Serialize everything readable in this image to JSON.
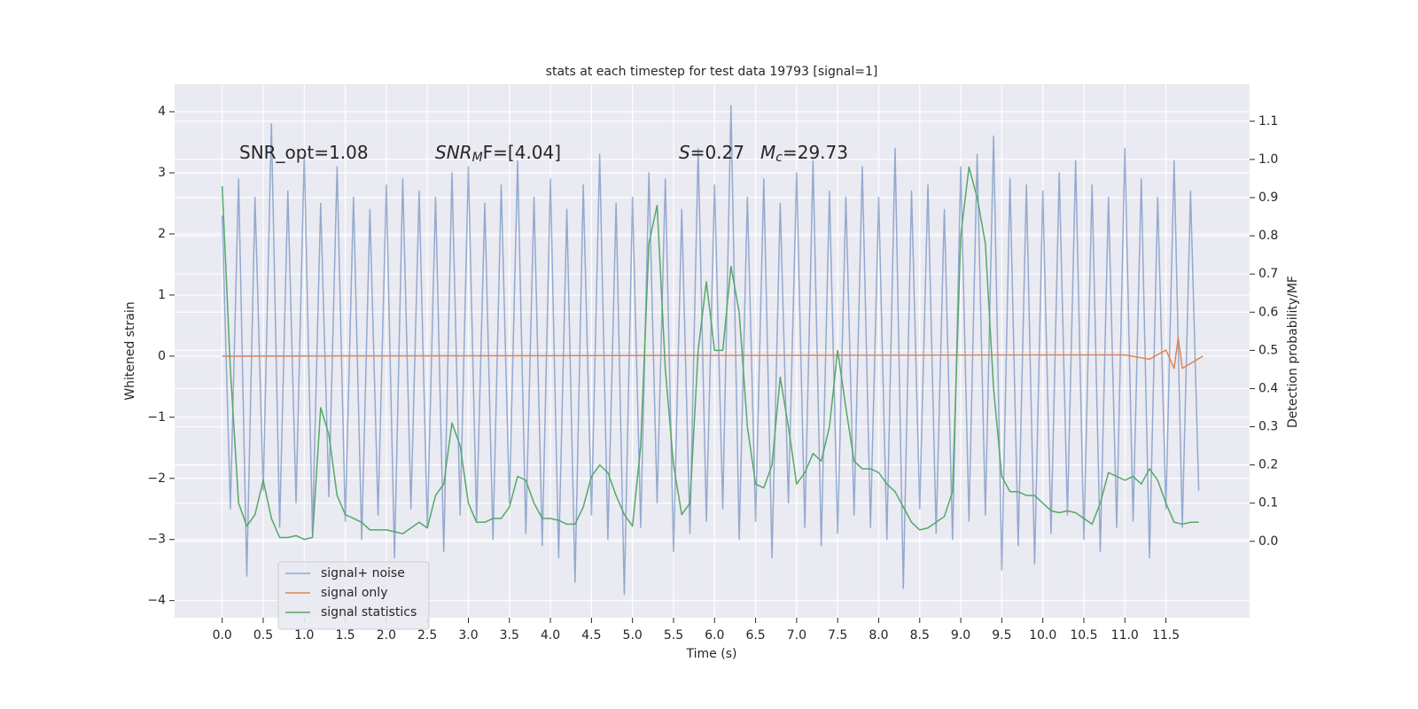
{
  "chart_data": {
    "type": "line",
    "title": "stats at each timestep for test data 19793 [signal=1]",
    "xlabel": "Time (s)",
    "ylabel": "Whitened strain",
    "y2label": "Detection probability/MF",
    "xlim": [
      -0.58,
      12.52
    ],
    "ylim": [
      -4.28,
      4.45
    ],
    "y2lim": [
      -0.2,
      1.197
    ],
    "xticks": [
      {
        "value": 0,
        "label": "0.0"
      },
      0.5,
      {
        "value": 1,
        "label": "1.0"
      },
      1.5,
      {
        "value": 2,
        "label": "2.0"
      },
      2.5,
      {
        "value": 3,
        "label": "3.0"
      },
      3.5,
      {
        "value": 4,
        "label": "4.0"
      },
      4.5,
      {
        "value": 5,
        "label": "5.0"
      },
      5.5,
      {
        "value": 6,
        "label": "6.0"
      },
      6.5,
      {
        "value": 7,
        "label": "7.0"
      },
      7.5,
      {
        "value": 8,
        "label": "8.0"
      },
      8.5,
      {
        "value": 9,
        "label": "9.0"
      },
      9.5,
      {
        "value": 10,
        "label": "10.0"
      },
      10.5,
      {
        "value": 11,
        "label": "11.0"
      },
      11.5
    ],
    "yticks": [
      {
        "value": -4,
        "label": "−4"
      },
      {
        "value": -3,
        "label": "−3"
      },
      {
        "value": -2,
        "label": "−2"
      },
      {
        "value": -1,
        "label": "−1"
      },
      0,
      1,
      2,
      3,
      4
    ],
    "y2ticks": [
      {
        "value": 0,
        "label": "0.0"
      },
      0.1,
      0.2,
      0.3,
      0.4,
      0.5,
      0.6,
      0.7,
      0.8,
      0.9,
      {
        "value": 1,
        "label": "1.0"
      },
      1.1
    ],
    "grid": true,
    "legend": "lower left",
    "annotations": [
      [
        "SNR_opt=1.08"
      ],
      [
        "SNR",
        "M",
        "F=[4.04]"
      ],
      [
        "S",
        "=0.27"
      ],
      [
        "M",
        "c",
        "=29.73"
      ]
    ],
    "series": [
      {
        "name": "signal+ noise",
        "color": "#4c72b0",
        "x": [
          0.0,
          0.1,
          0.2,
          0.3,
          0.4,
          0.5,
          0.6,
          0.7,
          0.8,
          0.9,
          1.0,
          1.1,
          1.2,
          1.3,
          1.4,
          1.5,
          1.6,
          1.7,
          1.8,
          1.9,
          2.0,
          2.1,
          2.2,
          2.3,
          2.4,
          2.5,
          2.6,
          2.7,
          2.8,
          2.9,
          3.0,
          3.1,
          3.2,
          3.3,
          3.4,
          3.5,
          3.6,
          3.7,
          3.8,
          3.9,
          4.0,
          4.1,
          4.2,
          4.3,
          4.4,
          4.5,
          4.6,
          4.7,
          4.8,
          4.9,
          5.0,
          5.1,
          5.2,
          5.3,
          5.4,
          5.5,
          5.6,
          5.7,
          5.8,
          5.9,
          6.0,
          6.1,
          6.2,
          6.3,
          6.4,
          6.5,
          6.6,
          6.7,
          6.8,
          6.9,
          7.0,
          7.1,
          7.2,
          7.3,
          7.4,
          7.5,
          7.6,
          7.7,
          7.8,
          7.9,
          8.0,
          8.1,
          8.2,
          8.3,
          8.4,
          8.5,
          8.6,
          8.7,
          8.8,
          8.9,
          9.0,
          9.1,
          9.2,
          9.3,
          9.4,
          9.5,
          9.6,
          9.7,
          9.8,
          9.9,
          10.0,
          10.1,
          10.2,
          10.3,
          10.4,
          10.5,
          10.6,
          10.7,
          10.8,
          10.9,
          11.0,
          11.1,
          11.2,
          11.3,
          11.4,
          11.5,
          11.6,
          11.7,
          11.8,
          11.9
        ],
        "values": [
          2.3,
          -2.5,
          2.9,
          -3.6,
          2.6,
          -2.2,
          3.8,
          -2.8,
          2.7,
          -2.4,
          3.3,
          -2.9,
          2.5,
          -2.3,
          3.1,
          -2.7,
          2.6,
          -3.0,
          2.4,
          -2.6,
          2.8,
          -3.3,
          2.9,
          -2.5,
          2.7,
          -2.8,
          2.6,
          -3.2,
          3.0,
          -2.6,
          3.1,
          -2.7,
          2.5,
          -3.0,
          2.8,
          -2.4,
          3.2,
          -2.9,
          2.6,
          -3.1,
          2.9,
          -3.3,
          2.4,
          -3.7,
          2.8,
          -2.6,
          3.3,
          -3.0,
          2.5,
          -3.9,
          2.6,
          -2.8,
          3.0,
          -2.4,
          2.9,
          -3.2,
          2.4,
          -2.9,
          3.4,
          -2.7,
          2.8,
          -2.5,
          4.1,
          -3.0,
          2.6,
          -2.7,
          2.9,
          -3.3,
          2.5,
          -2.4,
          3.0,
          -2.8,
          3.2,
          -3.1,
          2.7,
          -2.9,
          2.6,
          -2.6,
          3.1,
          -2.8,
          2.6,
          -3.0,
          3.4,
          -3.8,
          2.7,
          -2.5,
          2.8,
          -2.9,
          2.4,
          -3.0,
          3.1,
          -2.7,
          3.3,
          -2.6,
          3.6,
          -3.5,
          2.9,
          -3.1,
          2.8,
          -3.4,
          2.7,
          -2.9,
          3.0,
          -2.6,
          3.2,
          -3.0,
          2.8,
          -3.2,
          2.6,
          -2.8,
          3.4,
          -2.7,
          2.9,
          -3.3,
          2.6,
          -2.5,
          3.2,
          -2.8,
          2.7,
          -2.2
        ]
      },
      {
        "name": "signal only",
        "color": "#dd8452",
        "x": [
          0.0,
          11.0,
          11.3,
          11.5,
          11.6,
          11.65,
          11.7,
          11.95
        ],
        "values": [
          0,
          0.02,
          -0.05,
          0.1,
          -0.2,
          0.3,
          -0.2,
          0
        ]
      },
      {
        "name": "signal statistics",
        "color": "#55a868",
        "axis": "y2",
        "x": [
          0.0,
          0.1,
          0.2,
          0.3,
          0.4,
          0.5,
          0.6,
          0.7,
          0.8,
          0.9,
          1.0,
          1.1,
          1.2,
          1.3,
          1.4,
          1.5,
          1.6,
          1.7,
          1.8,
          1.9,
          2.0,
          2.1,
          2.2,
          2.3,
          2.4,
          2.5,
          2.6,
          2.7,
          2.8,
          2.9,
          3.0,
          3.1,
          3.2,
          3.3,
          3.4,
          3.5,
          3.6,
          3.7,
          3.8,
          3.9,
          4.0,
          4.1,
          4.2,
          4.3,
          4.4,
          4.5,
          4.6,
          4.7,
          4.8,
          4.9,
          5.0,
          5.1,
          5.2,
          5.3,
          5.4,
          5.5,
          5.6,
          5.7,
          5.8,
          5.9,
          6.0,
          6.1,
          6.2,
          6.3,
          6.4,
          6.5,
          6.6,
          6.7,
          6.8,
          6.9,
          7.0,
          7.1,
          7.2,
          7.3,
          7.4,
          7.5,
          7.6,
          7.7,
          7.8,
          7.9,
          8.0,
          8.1,
          8.2,
          8.3,
          8.4,
          8.5,
          8.6,
          8.7,
          8.8,
          8.9,
          9.0,
          9.1,
          9.2,
          9.3,
          9.4,
          9.5,
          9.6,
          9.7,
          9.8,
          9.9,
          10.0,
          10.1,
          10.2,
          10.3,
          10.4,
          10.5,
          10.6,
          10.7,
          10.8,
          10.9,
          11.0,
          11.1,
          11.2,
          11.3,
          11.4,
          11.5,
          11.6,
          11.7,
          11.8,
          11.9
        ],
        "values": [
          0.93,
          0.45,
          0.1,
          0.04,
          0.07,
          0.16,
          0.06,
          0.01,
          0.01,
          0.015,
          0.005,
          0.01,
          0.35,
          0.28,
          0.12,
          0.07,
          0.06,
          0.05,
          0.03,
          0.03,
          0.03,
          0.025,
          0.02,
          0.035,
          0.05,
          0.035,
          0.12,
          0.15,
          0.31,
          0.25,
          0.1,
          0.05,
          0.05,
          0.06,
          0.06,
          0.09,
          0.17,
          0.16,
          0.1,
          0.06,
          0.06,
          0.055,
          0.045,
          0.045,
          0.09,
          0.17,
          0.2,
          0.18,
          0.12,
          0.07,
          0.04,
          0.25,
          0.78,
          0.88,
          0.45,
          0.2,
          0.07,
          0.1,
          0.5,
          0.68,
          0.5,
          0.5,
          0.72,
          0.6,
          0.3,
          0.15,
          0.14,
          0.2,
          0.43,
          0.3,
          0.15,
          0.18,
          0.23,
          0.21,
          0.3,
          0.5,
          0.35,
          0.21,
          0.19,
          0.19,
          0.18,
          0.15,
          0.13,
          0.09,
          0.05,
          0.03,
          0.035,
          0.05,
          0.065,
          0.13,
          0.8,
          0.98,
          0.9,
          0.78,
          0.4,
          0.17,
          0.13,
          0.13,
          0.12,
          0.12,
          0.1,
          0.08,
          0.075,
          0.08,
          0.075,
          0.06,
          0.045,
          0.1,
          0.18,
          0.17,
          0.16,
          0.17,
          0.15,
          0.19,
          0.16,
          0.1,
          0.05,
          0.045,
          0.05,
          0.05
        ]
      }
    ]
  }
}
